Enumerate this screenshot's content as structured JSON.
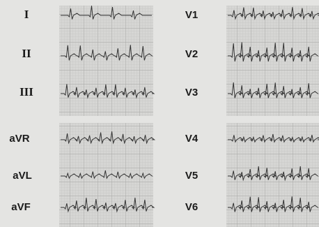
{
  "leads": {
    "limb": [
      "I",
      "II",
      "III"
    ],
    "augmented": [
      "aVR",
      "aVL",
      "aVF"
    ],
    "precordial_upper": [
      "V1",
      "V2",
      "V3"
    ],
    "precordial_lower": [
      "V4",
      "V5",
      "V6"
    ]
  }
}
